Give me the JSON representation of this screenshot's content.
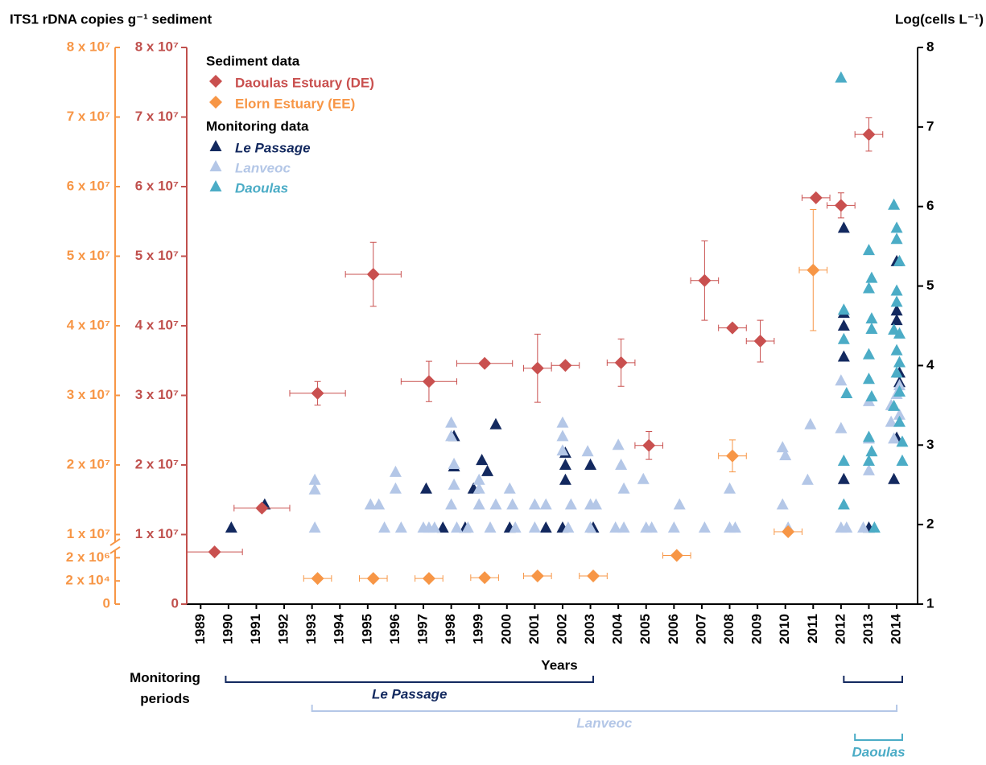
{
  "chart_data": {
    "type": "scatter",
    "ylabel": "ITS1 rDNA copies g⁻¹ sediment",
    "y2label": "Log(cells L⁻¹)",
    "xlabel": "Years",
    "periods_label": "Monitoring periods",
    "legend_titles": [
      "Sediment data",
      "Monitoring data"
    ],
    "xlim": [
      1988.5,
      2014.75
    ],
    "xticks": [
      1989,
      1990,
      1991,
      1992,
      1993,
      1994,
      1995,
      1996,
      1997,
      1998,
      1999,
      2000,
      2001,
      2002,
      2003,
      2004,
      2005,
      2006,
      2007,
      2008,
      2009,
      2010,
      2011,
      2012,
      2013,
      2014
    ],
    "ylim": [
      0,
      80000000
    ],
    "yticks": [
      0,
      {
        "value": 10000000,
        "label": "1 x 10⁷"
      },
      {
        "value": 20000000,
        "label": "2 x 10⁷"
      },
      {
        "value": 30000000,
        "label": "3 x 10⁷"
      },
      {
        "value": 40000000,
        "label": "4 x 10⁷"
      },
      {
        "value": 50000000,
        "label": "5 x 10⁷"
      },
      {
        "value": 60000000,
        "label": "6 x 10⁷"
      },
      {
        "value": 70000000,
        "label": "7 x 10⁷"
      },
      {
        "value": 80000000,
        "label": "8 x 10⁷"
      }
    ],
    "y3lim": [
      0,
      80000000
    ],
    "y3ticks": [
      0,
      {
        "value": 20000,
        "label": "2 x 10⁴"
      },
      {
        "value": 2000000,
        "label": "2 x 10⁶"
      },
      {
        "value": 10000000,
        "label": "1 x 10⁷"
      },
      {
        "value": 20000000,
        "label": "2 x 10⁷"
      },
      {
        "value": 30000000,
        "label": "3 x 10⁷"
      },
      {
        "value": 40000000,
        "label": "4 x 10⁷"
      },
      {
        "value": 50000000,
        "label": "5 x 10⁷"
      },
      {
        "value": 60000000,
        "label": "6 x 10⁷"
      },
      {
        "value": 70000000,
        "label": "7 x 10⁷"
      },
      {
        "value": 80000000,
        "label": "8 x 10⁷"
      }
    ],
    "y2lim": [
      1,
      8
    ],
    "y2ticks": [
      1,
      2,
      3,
      4,
      5,
      6,
      7,
      8
    ],
    "y_color": "#c0504d",
    "y3_color": "#f79646",
    "series": [
      {
        "name": "Daoulas Estuary (DE)",
        "color": "#c9504f",
        "marker": "diamond",
        "axis": "y",
        "x": [
          1989.5,
          1991.2,
          1993.2,
          1995.2,
          1997.2,
          1999.2,
          2001.1,
          2002.1,
          2004.1,
          2005.1,
          2007.1,
          2008.1,
          2009.1,
          2011.1,
          2012.0,
          2013.0
        ],
        "values": [
          7500000,
          13800000,
          30300000,
          47400000,
          32000000,
          34600000,
          33900000,
          34300000,
          34700000,
          22800000,
          46500000,
          39700000,
          37800000,
          58400000,
          57300000,
          67500000
        ],
        "xerr": [
          1,
          1,
          1,
          1,
          1,
          1,
          0.5,
          0.5,
          0.5,
          0.5,
          0.5,
          0.5,
          0.5,
          0.5,
          0.5,
          0.5
        ],
        "yerr": [
          null,
          null,
          1700000,
          4600000,
          2900000,
          null,
          4900000,
          null,
          3400000,
          2000000,
          5700000,
          null,
          3000000,
          null,
          1800000,
          2400000
        ]
      },
      {
        "name": "Elorn Estuary (EE)",
        "color": "#f79646",
        "marker": "diamond",
        "axis": "y3",
        "x": [
          1993.2,
          1995.2,
          1997.2,
          1999.2,
          2001.1,
          2003.1,
          2006.1,
          2008.1,
          2010.1,
          2011.0
        ],
        "values": [
          230000,
          230000,
          230000,
          300000,
          440000,
          440000,
          2800000,
          21300000,
          10400000,
          48000000
        ],
        "xerr": [
          0.5,
          0.5,
          0.5,
          0.5,
          0.5,
          0.5,
          0.5,
          0.5,
          0.5,
          0.5
        ],
        "yerr": [
          null,
          null,
          null,
          null,
          null,
          null,
          null,
          2300000,
          null,
          8700000
        ]
      },
      {
        "name": "Le Passage",
        "color": "#13295f",
        "marker": "triangle",
        "axis": "y2",
        "period": [
          [
            1989.9,
            2003.1
          ],
          [
            2012.1,
            2014.2
          ]
        ],
        "x": [
          1990.1,
          1991.3,
          1997.1,
          1998.1,
          1998.1,
          1997.7,
          1998.5,
          1998.8,
          1999.1,
          1999.3,
          1999.6,
          2000.1,
          2001.4,
          2002.0,
          2002.1,
          2002.1,
          2002.1,
          2003.0,
          2003.1,
          2012.1,
          2012.1,
          2012.1,
          2012.1,
          2012.1,
          2013.0,
          2013.9,
          2014.0,
          2014.0,
          2014.0,
          2014.0,
          2014.1,
          2014.1
        ],
        "values": [
          1.96,
          2.25,
          2.45,
          3.11,
          2.73,
          1.96,
          1.96,
          2.45,
          2.81,
          2.67,
          3.26,
          1.96,
          1.96,
          1.96,
          2.75,
          2.56,
          2.9,
          2.75,
          1.96,
          5.73,
          4.66,
          4.5,
          4.11,
          2.57,
          1.96,
          2.57,
          3.09,
          4.69,
          4.57,
          5.31,
          3.91,
          3.79
        ]
      },
      {
        "name": "Lanveoc",
        "color": "#b4c7e7",
        "marker": "triangle",
        "axis": "y2",
        "period": [
          [
            1993.0,
            2014.0
          ]
        ],
        "x": [
          1993.1,
          1993.1,
          1993.1,
          1995.1,
          1995.4,
          1995.6,
          1996.0,
          1996.0,
          1996.2,
          1997.0,
          1997.2,
          1997.4,
          1998.0,
          1998.0,
          1998.0,
          1998.1,
          1998.1,
          1998.2,
          1998.6,
          1999.0,
          1999.0,
          1999.0,
          1999.4,
          1999.6,
          2000.1,
          2000.2,
          2000.3,
          2001.0,
          2001.0,
          2001.4,
          2002.0,
          2002.0,
          2002.0,
          2002.2,
          2002.3,
          2002.9,
          2003.0,
          2003.2,
          2003.0,
          2003.9,
          2004.0,
          2004.1,
          2004.2,
          2004.2,
          2004.9,
          2005.0,
          2005.2,
          2006.2,
          2006.0,
          2007.1,
          2008.0,
          2008.0,
          2008.2,
          2009.9,
          2010.0,
          2009.9,
          2010.1,
          2010.9,
          2010.8,
          2012.0,
          2012.0,
          2012.0,
          2012.2,
          2013.0,
          2013.0,
          2013.0,
          2012.8,
          2013.8,
          2013.8,
          2013.9,
          2014.1,
          2014.1,
          2014.0
        ],
        "values": [
          2.56,
          2.44,
          1.96,
          2.25,
          2.25,
          1.96,
          2.66,
          2.45,
          1.96,
          1.96,
          1.96,
          1.96,
          3.28,
          3.11,
          2.25,
          2.5,
          2.76,
          1.96,
          1.96,
          2.25,
          2.56,
          2.45,
          1.96,
          2.25,
          2.45,
          2.25,
          1.96,
          2.25,
          1.96,
          2.25,
          3.28,
          3.11,
          2.93,
          1.96,
          2.25,
          2.92,
          2.25,
          2.25,
          1.96,
          1.96,
          3.0,
          2.75,
          2.45,
          1.96,
          2.57,
          1.96,
          1.96,
          2.25,
          1.96,
          1.96,
          2.45,
          1.96,
          1.96,
          2.97,
          2.87,
          2.25,
          1.96,
          3.26,
          2.56,
          3.81,
          3.21,
          1.96,
          1.96,
          3.55,
          3.08,
          2.68,
          1.96,
          3.5,
          3.29,
          3.08,
          3.38,
          3.75,
          3.64
        ]
      },
      {
        "name": "Daoulas",
        "color": "#4bacc6",
        "marker": "triangle",
        "axis": "y2",
        "period": [
          [
            2012.5,
            2014.2
          ]
        ],
        "x": [
          2012.0,
          2012.1,
          2012.1,
          2012.2,
          2012.1,
          2012.1,
          2013.0,
          2013.1,
          2013.0,
          2013.1,
          2013.1,
          2013.0,
          2013.0,
          2013.1,
          2013.0,
          2013.1,
          2013.0,
          2013.2,
          2013.9,
          2014.0,
          2014.0,
          2014.1,
          2014.0,
          2014.0,
          2013.9,
          2014.1,
          2014.0,
          2014.1,
          2014.0,
          2014.1,
          2013.9,
          2014.1,
          2014.2,
          2014.2
        ],
        "values": [
          7.62,
          4.7,
          4.33,
          3.65,
          2.8,
          2.25,
          5.45,
          5.1,
          4.97,
          4.59,
          4.46,
          4.14,
          3.83,
          3.61,
          3.1,
          2.92,
          2.8,
          1.96,
          6.02,
          5.73,
          5.59,
          5.31,
          4.94,
          4.8,
          4.45,
          4.4,
          4.19,
          4.04,
          3.91,
          3.67,
          3.49,
          3.29,
          3.04,
          2.8
        ]
      }
    ]
  }
}
